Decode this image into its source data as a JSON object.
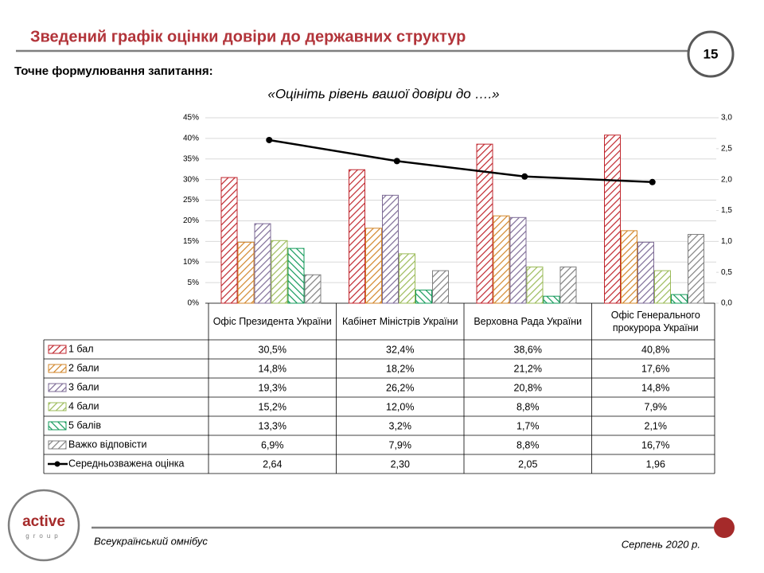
{
  "header": {
    "title": "Зведений графік оцінки довіри до державних структур",
    "page_number": "15"
  },
  "question": {
    "label": "Точне формулювання  запитання:",
    "text": "«Оцініть рівень вашої довіри до ….»"
  },
  "chart_data": {
    "type": "bar",
    "categories": [
      "Офіс Президента України",
      "Кабінет Міністрів України",
      "Верховна Рада України",
      "Офіс Генерального прокурора  України"
    ],
    "series": [
      {
        "name": "1 бал",
        "color": "#c0262d",
        "values": [
          30.5,
          32.4,
          38.6,
          40.8
        ],
        "value_labels": [
          "30,5%",
          "32,4%",
          "38,6%",
          "40,8%"
        ]
      },
      {
        "name": "2 бали",
        "color": "#d2862a",
        "values": [
          14.8,
          18.2,
          21.2,
          17.6
        ],
        "value_labels": [
          "14,8%",
          "18,2%",
          "21,2%",
          "17,6%"
        ]
      },
      {
        "name": "3 бали",
        "color": "#7d6b96",
        "values": [
          19.3,
          26.2,
          20.8,
          14.8
        ],
        "value_labels": [
          "19,3%",
          "26,2%",
          "20,8%",
          "14,8%"
        ]
      },
      {
        "name": "4 бали",
        "color": "#9bbb59",
        "values": [
          15.2,
          12.0,
          8.8,
          7.9
        ],
        "value_labels": [
          "15,2%",
          "12,0%",
          "8,8%",
          "7,9%"
        ]
      },
      {
        "name": "5 балів",
        "color": "#139a5a",
        "values": [
          13.3,
          3.2,
          1.7,
          2.1
        ],
        "value_labels": [
          "13,3%",
          "3,2%",
          "1,7%",
          "2,1%"
        ]
      },
      {
        "name": "Важко відповісти",
        "color": "#808080",
        "values": [
          6.9,
          7.9,
          8.8,
          16.7
        ],
        "value_labels": [
          "6,9%",
          "7,9%",
          "8,8%",
          "16,7%"
        ]
      },
      {
        "name": "Середньозважена оцінка",
        "type": "line",
        "axis": "y2",
        "color": "#000000",
        "values": [
          2.64,
          2.3,
          2.05,
          1.96
        ],
        "value_labels": [
          "2,64",
          "2,30",
          "2,05",
          "1,96"
        ]
      }
    ],
    "ylim": [
      0,
      45
    ],
    "yticks": [
      {
        "value": 0,
        "label": "0%"
      },
      {
        "value": 5,
        "label": "5%"
      },
      {
        "value": 10,
        "label": "10%"
      },
      {
        "value": 15,
        "label": "15%"
      },
      {
        "value": 20,
        "label": "20%"
      },
      {
        "value": 25,
        "label": "25%"
      },
      {
        "value": 30,
        "label": "30%"
      },
      {
        "value": 35,
        "label": "35%"
      },
      {
        "value": 40,
        "label": "40%"
      },
      {
        "value": 45,
        "label": "45%"
      }
    ],
    "y2lim": [
      0,
      3
    ],
    "y2ticks": [
      {
        "value": 0,
        "label": "0,0"
      },
      {
        "value": 0.5,
        "label": "0,5"
      },
      {
        "value": 1,
        "label": "1,0"
      },
      {
        "value": 1.5,
        "label": "1,5"
      },
      {
        "value": 2,
        "label": "2,0"
      },
      {
        "value": 2.5,
        "label": "2,5"
      },
      {
        "value": 3,
        "label": "3,0"
      }
    ],
    "grid": true
  },
  "footer": {
    "left": "Всеукраїнський омнібус",
    "right": "Серпень 2020 р."
  },
  "logo": {
    "name": "active",
    "tagline": "group"
  }
}
